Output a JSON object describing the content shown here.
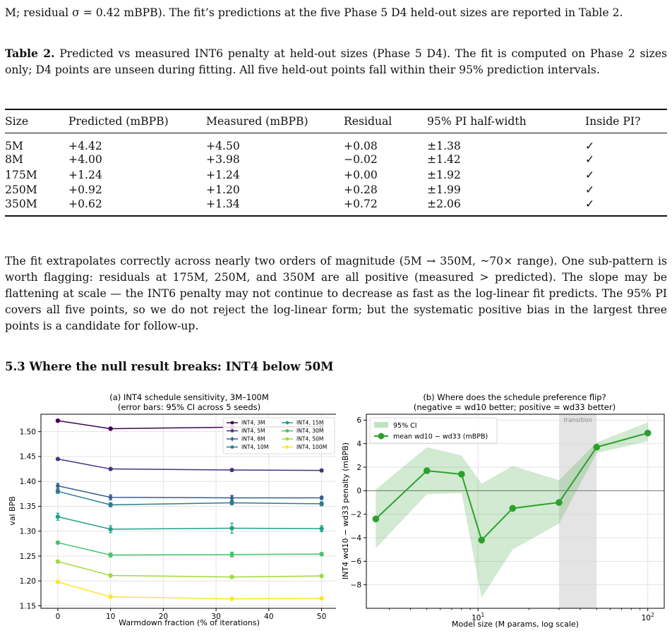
{
  "top_paragraph": "M; residual σ = 0.42 mBPB). The fit’s predictions at the five Phase 5 D4 held-out sizes are reported in Table 2.",
  "caption": {
    "label": "Table 2.",
    "text": " Predicted vs measured INT6 penalty at held-out sizes (Phase 5 D4). The fit is computed on Phase 2 sizes only; D4 points are unseen during fitting. All five held-out points fall within their 95% prediction intervals."
  },
  "table": {
    "headers": [
      "Size",
      "Predicted (mBPB)",
      "Measured (mBPB)",
      "Residual",
      "95% PI half-width",
      "Inside PI?"
    ],
    "rows": [
      [
        "5M",
        "+4.42",
        "+4.50",
        "+0.08",
        "±1.38",
        "✓"
      ],
      [
        "8M",
        "+4.00",
        "+3.98",
        "−0.02",
        "±1.42",
        "✓"
      ],
      [
        "175M",
        "+1.24",
        "+1.24",
        "+0.00",
        "±1.92",
        "✓"
      ],
      [
        "250M",
        "+0.92",
        "+1.20",
        "+0.28",
        "±1.99",
        "✓"
      ],
      [
        "350M",
        "+0.62",
        "+1.34",
        "+0.72",
        "±2.06",
        "✓"
      ]
    ]
  },
  "body_paragraph": "The fit extrapolates correctly across nearly two orders of magnitude (5M → 350M, ~70× range). One sub-pattern is worth flagging: residuals at 175M, 250M, and 350M are all positive (measured > predicted). The slope may be flattening at scale — the INT6 penalty may not continue to decrease as fast as the log-linear fit predicts. The 95% PI covers all five points, so we do not reject the log-linear form; but the systematic positive bias in the largest three points is a candidate for follow-up.",
  "section_heading": "5.3 Where the null result breaks: INT4 below 50M",
  "chart_data": [
    {
      "type": "line",
      "title": "(a) INT4 schedule sensitivity, 3M–100M",
      "subtitle": "(error bars: 95% CI across 5 seeds)",
      "xlabel": "Warmdown fraction (% of iterations)",
      "ylabel": "val BPB",
      "xlim": [
        -3.2,
        53
      ],
      "ylim": [
        1.145,
        1.535
      ],
      "x": [
        0,
        10,
        33,
        50
      ],
      "xticks": [
        0,
        10,
        20,
        30,
        40,
        50
      ],
      "yticks": [
        1.15,
        1.2,
        1.25,
        1.3,
        1.35,
        1.4,
        1.45,
        1.5
      ],
      "grid": true,
      "legend_position": "top-right",
      "series": [
        {
          "name": "INT4, 3M",
          "color": "#440154",
          "marker": "circle",
          "values": [
            1.522,
            1.506,
            1.509,
            1.51
          ],
          "err": [
            0.002,
            0.002,
            0.002,
            0.002
          ]
        },
        {
          "name": "INT4, 5M",
          "color": "#46327e",
          "marker": "pentagon",
          "values": [
            1.445,
            1.425,
            1.423,
            1.422
          ],
          "err": [
            0.002,
            0.002,
            0.002,
            0.002
          ]
        },
        {
          "name": "INT4, 8M",
          "color": "#365c8d",
          "marker": "diamond",
          "values": [
            1.391,
            1.368,
            1.367,
            1.367
          ],
          "err": [
            0.005,
            0.005,
            0.005,
            0.003
          ]
        },
        {
          "name": "INT4, 10M",
          "color": "#277f8e",
          "marker": "circle",
          "values": [
            1.38,
            1.353,
            1.357,
            1.355
          ],
          "err": [
            0.004,
            0.004,
            0.004,
            0.004
          ]
        },
        {
          "name": "INT4, 15M",
          "color": "#1fa187",
          "marker": "circle",
          "values": [
            1.329,
            1.304,
            1.306,
            1.305
          ],
          "err": [
            0.007,
            0.007,
            0.01,
            0.006
          ]
        },
        {
          "name": "INT4, 30M",
          "color": "#4ac16d",
          "marker": "circle",
          "values": [
            1.277,
            1.252,
            1.253,
            1.254
          ],
          "err": [
            0.002,
            0.004,
            0.005,
            0.003
          ]
        },
        {
          "name": "INT4, 50M",
          "color": "#a0da39",
          "marker": "circle",
          "values": [
            1.239,
            1.211,
            1.208,
            1.21
          ],
          "err": [
            0.002,
            0.002,
            0.002,
            0.002
          ]
        },
        {
          "name": "INT4, 100M",
          "color": "#fde725",
          "marker": "circle",
          "values": [
            1.198,
            1.168,
            1.164,
            1.165
          ],
          "err": [
            0.002,
            0.002,
            0.002,
            0.002
          ]
        }
      ]
    },
    {
      "type": "line",
      "title": "(b) Where does the schedule preference flip?",
      "subtitle": "(negative = wd10 better; positive = wd33 better)",
      "xlabel": "Model size (M params, log scale)",
      "ylabel": "INT4 wd10 − wd33 penalty (mBPB)",
      "xscale": "log",
      "xlim": [
        2.2,
        125
      ],
      "ylim": [
        -10,
        6.5
      ],
      "xticks_major": [
        {
          "value": 10,
          "base": "10",
          "exp": "1"
        },
        {
          "value": 100,
          "base": "10",
          "exp": "2"
        }
      ],
      "yticks": [
        -8,
        -6,
        -4,
        -2,
        0,
        2,
        4,
        6
      ],
      "grid": true,
      "legend_position": "top-left",
      "transition_band": {
        "from": 30,
        "to": 50,
        "label": "transition"
      },
      "ci_label": "95% CI",
      "mean_label": "mean wd10 − wd33 (mBPB)",
      "color": "#2ca02c",
      "x": [
        2.5,
        5,
        8,
        10.5,
        16,
        30,
        50,
        100
      ],
      "values": [
        -2.4,
        1.7,
        1.4,
        -4.2,
        -1.5,
        -1.0,
        3.7,
        4.9
      ],
      "ci_low": [
        -4.9,
        -0.3,
        -0.2,
        -9.1,
        -5.0,
        -2.8,
        3.2,
        4.2
      ],
      "ci_high": [
        0.1,
        3.7,
        3.0,
        0.6,
        2.1,
        0.9,
        4.1,
        5.8
      ]
    }
  ]
}
